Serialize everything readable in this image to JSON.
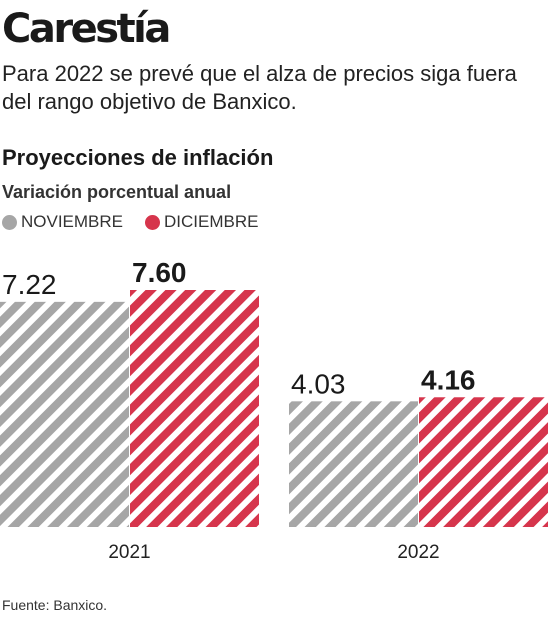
{
  "header": {
    "title": "Carestía",
    "subtitle": "Para 2022 se prevé que el alza de precios siga fuera del rango objetivo de Banxico."
  },
  "source": "Fuente: Banxico.",
  "colors": {
    "noviembre": "#a6a6a6",
    "diciembre": "#d6354c"
  },
  "chart_data": {
    "type": "bar",
    "title": "Proyecciones de inflación",
    "subtitle": "Variación porcentual anual",
    "categories": [
      "2021",
      "2022"
    ],
    "series": [
      {
        "name": "NOVIEMBRE",
        "values": [
          7.22,
          4.03
        ],
        "labels": [
          "7.22",
          "4.03"
        ]
      },
      {
        "name": "DICIEMBRE",
        "values": [
          7.6,
          4.16
        ],
        "labels": [
          "7.60",
          "4.16"
        ]
      }
    ],
    "xlabel": "",
    "ylabel": "",
    "ylim": [
      0,
      7.6
    ],
    "grid": false,
    "legend_position": "top-left"
  }
}
